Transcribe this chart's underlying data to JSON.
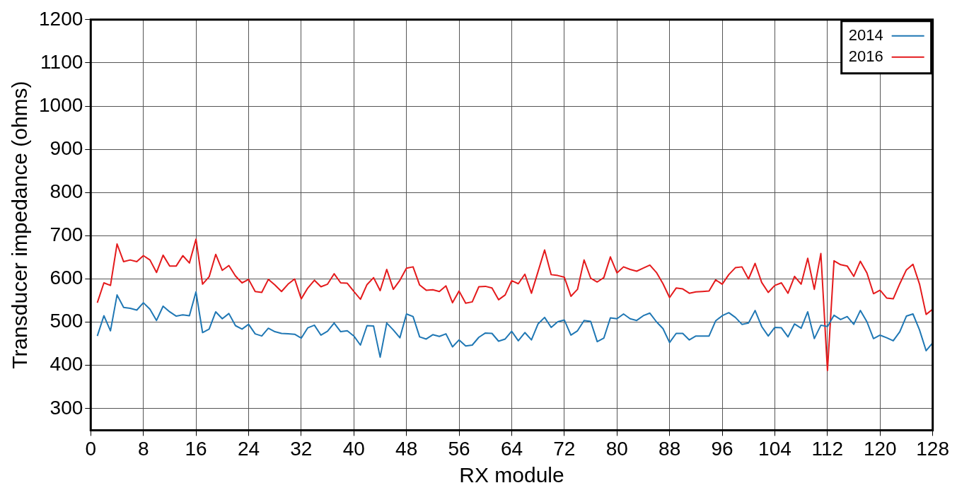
{
  "chart_data": {
    "type": "line",
    "xlabel": "RX module",
    "ylabel": "Transducer impedance (ohms)",
    "x": [
      1,
      2,
      3,
      4,
      5,
      6,
      7,
      8,
      9,
      10,
      11,
      12,
      13,
      14,
      15,
      16,
      17,
      18,
      19,
      20,
      21,
      22,
      23,
      24,
      25,
      26,
      27,
      28,
      29,
      30,
      31,
      32,
      33,
      34,
      35,
      36,
      37,
      38,
      39,
      40,
      41,
      42,
      43,
      44,
      45,
      46,
      47,
      48,
      49,
      50,
      51,
      52,
      53,
      54,
      55,
      56,
      57,
      58,
      59,
      60,
      61,
      62,
      63,
      64,
      65,
      66,
      67,
      68,
      69,
      70,
      71,
      72,
      73,
      74,
      75,
      76,
      77,
      78,
      79,
      80,
      81,
      82,
      83,
      84,
      85,
      86,
      87,
      88,
      89,
      90,
      91,
      92,
      93,
      94,
      95,
      96,
      97,
      98,
      99,
      100,
      101,
      102,
      103,
      104,
      105,
      106,
      107,
      108,
      109,
      110,
      111,
      112,
      113,
      114,
      115,
      116,
      117,
      118,
      119,
      120,
      121,
      122,
      123,
      124,
      125,
      126,
      127,
      128
    ],
    "series": [
      {
        "name": "2014",
        "color": "#1f77b4",
        "values": [
          468,
          515,
          480,
          563,
          534,
          532,
          528,
          545,
          530,
          504,
          537,
          524,
          514,
          517,
          515,
          570,
          476,
          484,
          524,
          508,
          520,
          492,
          484,
          495,
          473,
          468,
          486,
          478,
          474,
          473,
          472,
          463,
          487,
          493,
          470,
          479,
          498,
          478,
          480,
          468,
          447,
          492,
          491,
          419,
          498,
          482,
          464,
          519,
          513,
          466,
          461,
          471,
          467,
          473,
          443,
          459,
          445,
          447,
          465,
          475,
          474,
          456,
          461,
          479,
          457,
          476,
          459,
          496,
          511,
          488,
          501,
          505,
          470,
          480,
          504,
          502,
          455,
          463,
          510,
          508,
          519,
          508,
          504,
          515,
          521,
          501,
          485,
          453,
          474,
          474,
          459,
          468,
          468,
          468,
          503,
          515,
          522,
          511,
          495,
          498,
          527,
          490,
          468,
          488,
          487,
          466,
          496,
          486,
          524,
          462,
          493,
          490,
          516,
          506,
          513,
          495,
          527,
          501,
          462,
          470,
          464,
          457,
          478,
          514,
          519,
          482,
          434,
          452
        ]
      },
      {
        "name": "2016",
        "color": "#e41a1c",
        "values": [
          545,
          591,
          585,
          681,
          640,
          644,
          640,
          654,
          644,
          615,
          655,
          630,
          630,
          654,
          637,
          692,
          588,
          605,
          657,
          620,
          631,
          607,
          591,
          599,
          571,
          569,
          599,
          586,
          571,
          588,
          600,
          554,
          579,
          597,
          582,
          588,
          612,
          591,
          590,
          571,
          553,
          587,
          603,
          573,
          622,
          576,
          597,
          625,
          628,
          586,
          574,
          575,
          571,
          584,
          545,
          572,
          544,
          547,
          582,
          583,
          579,
          552,
          563,
          596,
          589,
          611,
          567,
          617,
          667,
          610,
          608,
          604,
          560,
          576,
          644,
          602,
          593,
          603,
          651,
          614,
          628,
          622,
          618,
          625,
          632,
          615,
          589,
          557,
          579,
          577,
          567,
          570,
          571,
          572,
          598,
          588,
          610,
          626,
          628,
          600,
          636,
          592,
          569,
          585,
          591,
          567,
          606,
          588,
          648,
          576,
          659,
          388,
          642,
          633,
          630,
          606,
          641,
          614,
          566,
          574,
          556,
          554,
          589,
          621,
          634,
          588,
          518,
          530
        ]
      }
    ],
    "xlim": [
      0,
      128
    ],
    "xticks": [
      0,
      8,
      16,
      24,
      32,
      40,
      48,
      56,
      64,
      72,
      80,
      88,
      96,
      104,
      112,
      120,
      128
    ],
    "ylim": [
      250,
      1200
    ],
    "yticks": [
      300,
      400,
      500,
      600,
      700,
      800,
      900,
      1000,
      1100,
      1200
    ],
    "grid": true,
    "legend": "top right",
    "marker": "none",
    "line_style": "solid"
  }
}
